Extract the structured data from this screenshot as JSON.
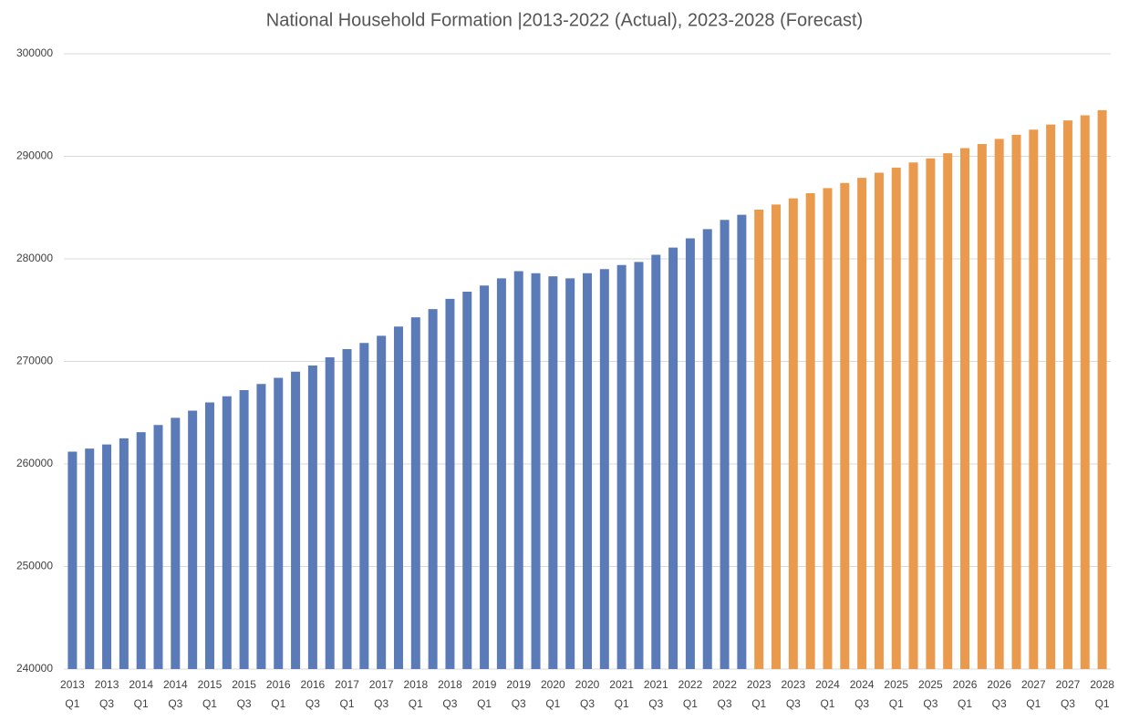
{
  "chart_data": {
    "type": "bar",
    "title": "National Household Formation |2013-2022 (Actual), 2023-2028 (Forecast)",
    "categories": [
      "2013 Q1",
      null,
      "2013 Q3",
      null,
      "2014 Q1",
      null,
      "2014 Q3",
      null,
      "2015 Q1",
      null,
      "2015 Q3",
      null,
      "2016 Q1",
      null,
      "2016 Q3",
      null,
      "2017 Q1",
      null,
      "2017 Q3",
      null,
      "2018 Q1",
      null,
      "2018 Q3",
      null,
      "2019 Q1",
      null,
      "2019 Q3",
      null,
      "2020 Q1",
      null,
      "2020 Q3",
      null,
      "2021 Q1",
      null,
      "2021 Q3",
      null,
      "2022 Q1",
      null,
      "2022 Q3",
      null,
      "2023 Q1",
      null,
      "2023 Q3",
      null,
      "2024 Q1",
      null,
      "2024 Q3",
      null,
      "2025 Q1",
      null,
      "2025 Q3",
      null,
      "2026 Q1",
      null,
      "2026 Q3",
      null,
      "2027 Q1",
      null,
      "2027 Q3",
      null,
      "2028 Q1"
    ],
    "series": [
      {
        "color": "#5b7bb8",
        "values": [
          261200,
          261500,
          261900,
          262500,
          263100,
          263800,
          264500,
          265200,
          266000,
          266600,
          267200,
          267800,
          268400,
          269000,
          269600,
          270400,
          271200,
          271800,
          272500,
          273400,
          274300,
          275100,
          276100,
          276800,
          277400,
          278100,
          278800,
          278600,
          278300,
          278100,
          278600,
          279000,
          279400,
          279700,
          280400,
          281100,
          282000,
          282900,
          283800,
          284300,
          null,
          null,
          null,
          null,
          null,
          null,
          null,
          null,
          null,
          null,
          null,
          null,
          null,
          null,
          null,
          null,
          null,
          null,
          null,
          null,
          null
        ]
      },
      {
        "color": "#ea9a4d",
        "values": [
          null,
          null,
          null,
          null,
          null,
          null,
          null,
          null,
          null,
          null,
          null,
          null,
          null,
          null,
          null,
          null,
          null,
          null,
          null,
          null,
          null,
          null,
          null,
          null,
          null,
          null,
          null,
          null,
          null,
          null,
          null,
          null,
          null,
          null,
          null,
          null,
          null,
          null,
          null,
          null,
          284800,
          285300,
          285900,
          286400,
          286900,
          287400,
          287900,
          288400,
          288900,
          289400,
          289800,
          290300,
          290800,
          291200,
          291700,
          292100,
          292600,
          293100,
          293500,
          294000,
          294500
        ]
      }
    ],
    "ylim": [
      240000,
      300000
    ],
    "yticks": [
      240000,
      250000,
      260000,
      270000,
      280000,
      290000,
      300000
    ],
    "grid": true
  }
}
